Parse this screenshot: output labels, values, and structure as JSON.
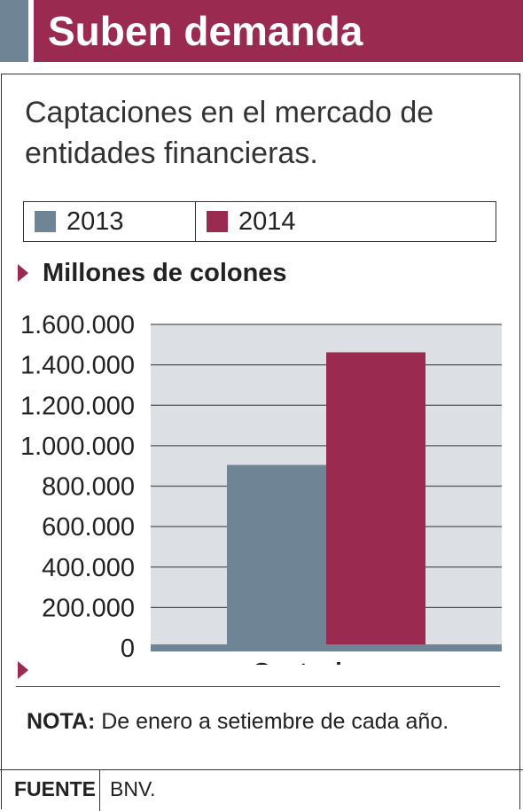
{
  "header": {
    "title": "Suben demanda"
  },
  "chart_data": {
    "type": "bar",
    "title": "Captaciones en el mercado de entidades financieras.",
    "ylabel": "Millones de colones",
    "categories": [
      "Captaciones"
    ],
    "series": [
      {
        "name": "2013",
        "values": [
          905000
        ],
        "color": "#6f8596"
      },
      {
        "name": "2014",
        "values": [
          1462000
        ],
        "color": "#9a2a50"
      }
    ],
    "ylim": [
      0,
      1600000
    ],
    "yticks": [
      "0",
      "200.000",
      "400.000",
      "600.000",
      "800.000",
      "1.000.000",
      "1.200.000",
      "1.400.000",
      "1.600.000"
    ],
    "grid": true,
    "legend": "top"
  },
  "note": {
    "label": "NOTA:",
    "text": "De enero a setiembre de cada año."
  },
  "footer": {
    "label": "FUENTE",
    "value": "BNV."
  }
}
